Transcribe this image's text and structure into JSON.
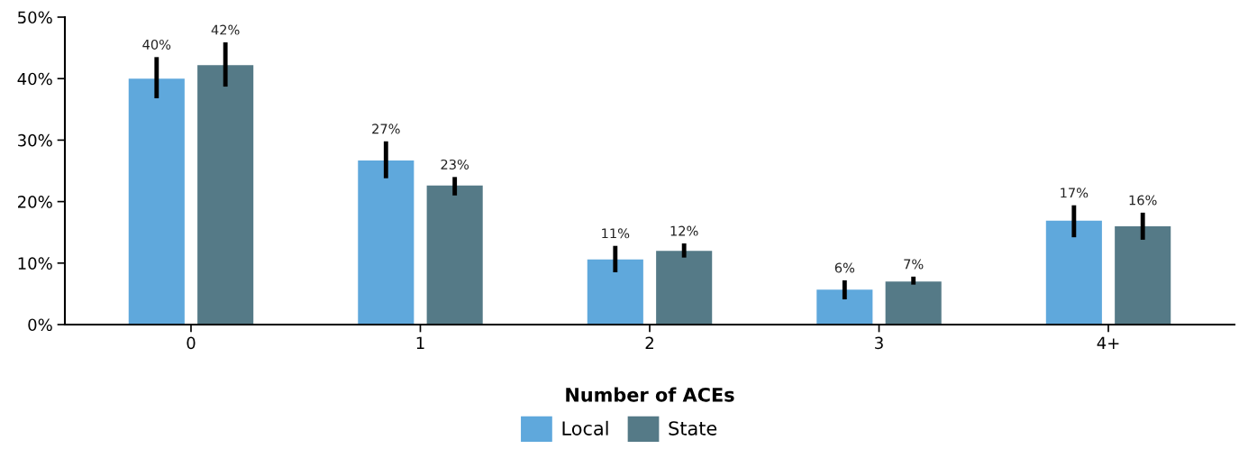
{
  "chart_data": {
    "type": "bar",
    "xlabel": "Number of ACEs",
    "categories": [
      "0",
      "1",
      "2",
      "3",
      "4+"
    ],
    "series": [
      {
        "name": "Local",
        "color": "#5fa8dc",
        "values": [
          40.0,
          26.7,
          10.6,
          5.7,
          16.9
        ],
        "errors": [
          [
            36.8,
            43.5
          ],
          [
            23.8,
            29.8
          ],
          [
            8.5,
            12.8
          ],
          [
            4.1,
            7.2
          ],
          [
            14.2,
            19.4
          ]
        ],
        "value_labels": [
          "40%",
          "27%",
          "11%",
          "6%",
          "17%"
        ]
      },
      {
        "name": "State",
        "color": "#557a87",
        "values": [
          42.2,
          22.6,
          12.0,
          7.0,
          16.0
        ],
        "errors": [
          [
            38.7,
            45.9
          ],
          [
            21.0,
            24.0
          ],
          [
            10.9,
            13.2
          ],
          [
            6.5,
            7.8
          ],
          [
            13.8,
            18.2
          ]
        ],
        "value_labels": [
          "42%",
          "23%",
          "12%",
          "7%",
          "16%"
        ]
      }
    ],
    "ylim": [
      0,
      50
    ],
    "yticks": [
      {
        "value": 0,
        "label": "0%"
      },
      {
        "value": 10,
        "label": "10%"
      },
      {
        "value": 20,
        "label": "20%"
      },
      {
        "value": 30,
        "label": "30%"
      },
      {
        "value": 40,
        "label": "40%"
      },
      {
        "value": 50,
        "label": "50%"
      }
    ],
    "grid": false,
    "legend": "bottom"
  }
}
